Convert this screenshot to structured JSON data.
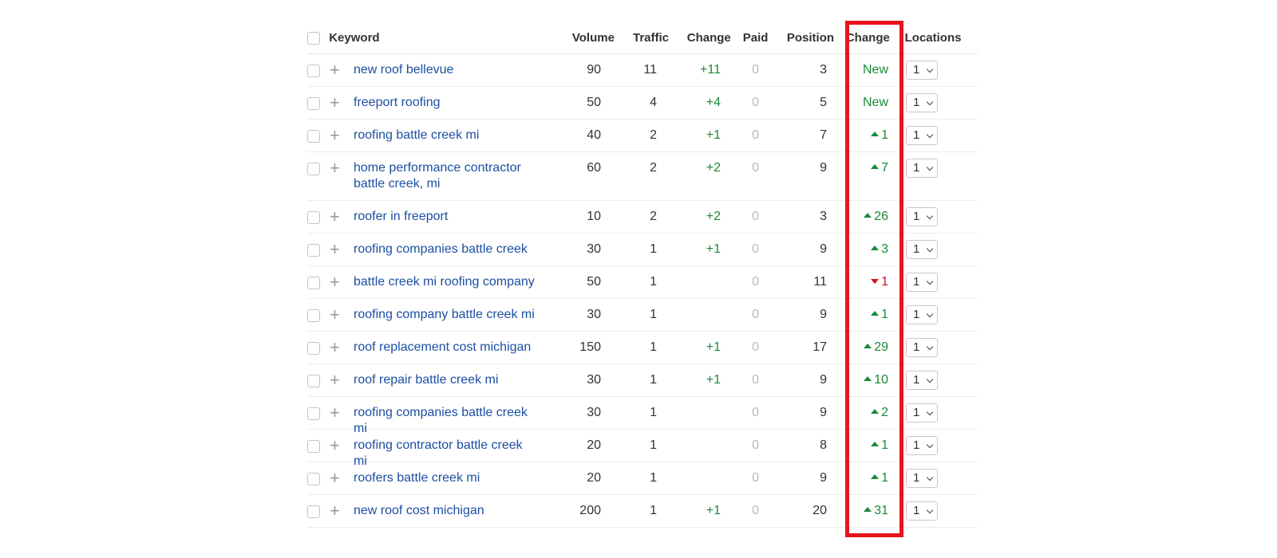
{
  "headers": {
    "keyword": "Keyword",
    "volume": "Volume",
    "traffic": "Traffic",
    "change": "Change",
    "paid": "Paid",
    "position": "Position",
    "position_change": "Change",
    "locations": "Locations"
  },
  "rows": [
    {
      "keyword": "new roof bellevue",
      "volume": "90",
      "traffic": "11",
      "change": "+11",
      "paid": "0",
      "position": "3",
      "pos_change": "New",
      "pos_dir": "new",
      "locations": "1"
    },
    {
      "keyword": "freeport roofing",
      "volume": "50",
      "traffic": "4",
      "change": "+4",
      "paid": "0",
      "position": "5",
      "pos_change": "New",
      "pos_dir": "new",
      "locations": "1"
    },
    {
      "keyword": "roofing battle creek mi",
      "volume": "40",
      "traffic": "2",
      "change": "+1",
      "paid": "0",
      "position": "7",
      "pos_change": "1",
      "pos_dir": "up",
      "locations": "1"
    },
    {
      "keyword": "home performance contractor battle creek, mi",
      "volume": "60",
      "traffic": "2",
      "change": "+2",
      "paid": "0",
      "position": "9",
      "pos_change": "7",
      "pos_dir": "up",
      "locations": "1"
    },
    {
      "keyword": "roofer in freeport",
      "volume": "10",
      "traffic": "2",
      "change": "+2",
      "paid": "0",
      "position": "3",
      "pos_change": "26",
      "pos_dir": "up",
      "locations": "1"
    },
    {
      "keyword": "roofing companies battle creek",
      "volume": "30",
      "traffic": "1",
      "change": "+1",
      "paid": "0",
      "position": "9",
      "pos_change": "3",
      "pos_dir": "up",
      "locations": "1"
    },
    {
      "keyword": "battle creek mi roofing company",
      "volume": "50",
      "traffic": "1",
      "change": "",
      "paid": "0",
      "position": "11",
      "pos_change": "1",
      "pos_dir": "down",
      "locations": "1"
    },
    {
      "keyword": "roofing company battle creek mi",
      "volume": "30",
      "traffic": "1",
      "change": "",
      "paid": "0",
      "position": "9",
      "pos_change": "1",
      "pos_dir": "up",
      "locations": "1"
    },
    {
      "keyword": "roof replacement cost michigan",
      "volume": "150",
      "traffic": "1",
      "change": "+1",
      "paid": "0",
      "position": "17",
      "pos_change": "29",
      "pos_dir": "up",
      "locations": "1"
    },
    {
      "keyword": "roof repair battle creek mi",
      "volume": "30",
      "traffic": "1",
      "change": "+1",
      "paid": "0",
      "position": "9",
      "pos_change": "10",
      "pos_dir": "up",
      "locations": "1"
    },
    {
      "keyword": "roofing companies battle creek mi",
      "volume": "30",
      "traffic": "1",
      "change": "",
      "paid": "0",
      "position": "9",
      "pos_change": "2",
      "pos_dir": "up",
      "locations": "1"
    },
    {
      "keyword": "roofing contractor battle creek mi",
      "volume": "20",
      "traffic": "1",
      "change": "",
      "paid": "0",
      "position": "8",
      "pos_change": "1",
      "pos_dir": "up",
      "locations": "1"
    },
    {
      "keyword": "roofers battle creek mi",
      "volume": "20",
      "traffic": "1",
      "change": "",
      "paid": "0",
      "position": "9",
      "pos_change": "1",
      "pos_dir": "up",
      "locations": "1"
    },
    {
      "keyword": "new roof cost michigan",
      "volume": "200",
      "traffic": "1",
      "change": "+1",
      "paid": "0",
      "position": "20",
      "pos_change": "31",
      "pos_dir": "up",
      "locations": "1"
    }
  ],
  "colors": {
    "link": "#1c4fa3",
    "positive": "#1a8a35",
    "negative": "#d0141e",
    "highlight": "#e8141c"
  },
  "icons": {
    "add": "plus-icon",
    "up": "arrow-up-icon",
    "down": "arrow-down-icon",
    "dropdown": "chevron-down-icon"
  }
}
